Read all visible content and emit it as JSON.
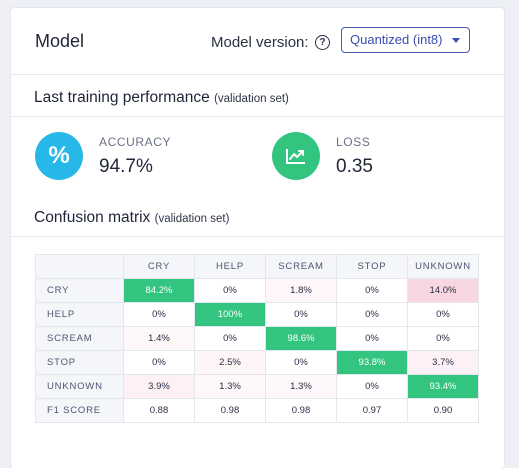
{
  "header": {
    "title": "Model",
    "version_label": "Model version:",
    "help_glyph": "?",
    "version_selected": "Quantized (int8)"
  },
  "performance": {
    "title": "Last training performance",
    "subtitle": "(validation set)",
    "accuracy": {
      "label": "ACCURACY",
      "value": "94.7%",
      "icon": "percent-icon",
      "color": "#27b8e8",
      "glyph": "%"
    },
    "loss": {
      "label": "LOSS",
      "value": "0.35",
      "icon": "chart-line-icon",
      "color": "#33c47f"
    }
  },
  "confusion": {
    "title": "Confusion matrix",
    "subtitle": "(validation set)",
    "columns": [
      "CRY",
      "HELP",
      "SCREAM",
      "STOP",
      "UNKNOWN"
    ],
    "rows": [
      {
        "label": "CRY",
        "cells": [
          "84.2%",
          "0%",
          "1.8%",
          "0%",
          "14.0%"
        ],
        "fractions": [
          0.842,
          0,
          0.018,
          0,
          0.14
        ]
      },
      {
        "label": "HELP",
        "cells": [
          "0%",
          "100%",
          "0%",
          "0%",
          "0%"
        ],
        "fractions": [
          0,
          1.0,
          0,
          0,
          0
        ]
      },
      {
        "label": "SCREAM",
        "cells": [
          "1.4%",
          "0%",
          "98.6%",
          "0%",
          "0%"
        ],
        "fractions": [
          0.014,
          0,
          0.986,
          0,
          0
        ]
      },
      {
        "label": "STOP",
        "cells": [
          "0%",
          "2.5%",
          "0%",
          "93.8%",
          "3.7%"
        ],
        "fractions": [
          0,
          0.025,
          0,
          0.938,
          0.037
        ]
      },
      {
        "label": "UNKNOWN",
        "cells": [
          "3.9%",
          "1.3%",
          "1.3%",
          "0%",
          "93.4%"
        ],
        "fractions": [
          0.039,
          0.013,
          0.013,
          0,
          0.934
        ]
      }
    ],
    "f1": {
      "label": "F1 SCORE",
      "values": [
        "0.88",
        "0.98",
        "0.98",
        "0.97",
        "0.90"
      ]
    },
    "colors": {
      "correct": "#33c47f",
      "error": "#f7d3dc",
      "header_bg": "#f4f6fa"
    }
  }
}
